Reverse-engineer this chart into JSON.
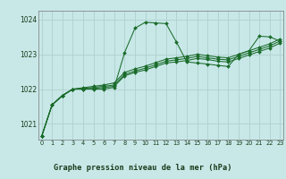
{
  "title": "Graphe pression niveau de la mer (hPa)",
  "bg_color": "#c8e8e8",
  "grid_color": "#b0d0d0",
  "line_color": "#1a6b2a",
  "xlim": [
    -0.3,
    23.3
  ],
  "ylim": [
    1020.55,
    1024.25
  ],
  "yticks": [
    1021,
    1022,
    1023,
    1024
  ],
  "xticks": [
    0,
    1,
    2,
    3,
    4,
    5,
    6,
    7,
    8,
    9,
    10,
    11,
    12,
    13,
    14,
    15,
    16,
    17,
    18,
    19,
    20,
    21,
    22,
    23
  ],
  "series": [
    [
      1020.65,
      1021.55,
      1021.8,
      1022.0,
      1022.0,
      1022.0,
      1022.0,
      1022.05,
      1023.05,
      1023.75,
      1023.92,
      1023.9,
      1023.88,
      1023.35,
      1022.78,
      1022.75,
      1022.72,
      1022.68,
      1022.65,
      1023.0,
      1023.1,
      1023.52,
      1023.5,
      1023.38
    ],
    [
      1020.65,
      1021.55,
      1021.82,
      1022.0,
      1022.0,
      1022.02,
      1022.05,
      1022.08,
      1022.38,
      1022.48,
      1022.55,
      1022.65,
      1022.75,
      1022.78,
      1022.82,
      1022.88,
      1022.85,
      1022.8,
      1022.78,
      1022.88,
      1022.98,
      1023.08,
      1023.18,
      1023.32
    ],
    [
      1020.65,
      1021.55,
      1021.82,
      1022.0,
      1022.02,
      1022.05,
      1022.08,
      1022.12,
      1022.42,
      1022.52,
      1022.6,
      1022.7,
      1022.8,
      1022.84,
      1022.88,
      1022.94,
      1022.9,
      1022.86,
      1022.84,
      1022.94,
      1023.04,
      1023.14,
      1023.24,
      1023.38
    ],
    [
      1020.65,
      1021.55,
      1021.82,
      1022.0,
      1022.04,
      1022.08,
      1022.12,
      1022.18,
      1022.48,
      1022.58,
      1022.66,
      1022.76,
      1022.86,
      1022.9,
      1022.94,
      1023.0,
      1022.96,
      1022.92,
      1022.9,
      1023.0,
      1023.1,
      1023.2,
      1023.3,
      1023.44
    ]
  ]
}
